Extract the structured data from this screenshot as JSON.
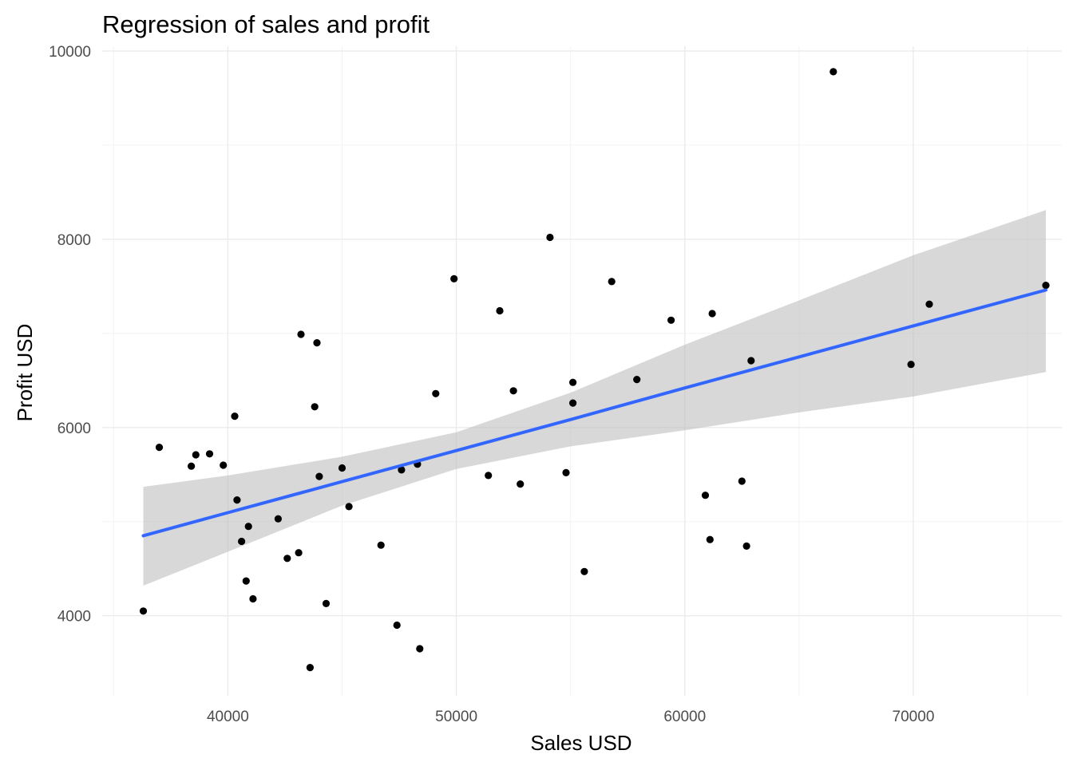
{
  "chart_data": {
    "type": "scatter",
    "title": "Regression of sales and profit",
    "xlabel": "Sales USD",
    "ylabel": "Profit USD",
    "xlim": [
      34500,
      76500
    ],
    "ylim": [
      3150,
      10050
    ],
    "x_ticks": [
      40000,
      50000,
      60000,
      70000
    ],
    "x_tick_labels": [
      "40000",
      "50000",
      "60000",
      "70000"
    ],
    "y_ticks": [
      4000,
      6000,
      8000,
      10000
    ],
    "y_tick_labels": [
      "4000",
      "6000",
      "8000",
      "10000"
    ],
    "grid": true,
    "point_color": "#000000",
    "line_color": "#3366ff",
    "band_color": "#bebebe",
    "regression": {
      "x": [
        36300,
        40000,
        45000,
        50000,
        55000,
        60000,
        65000,
        70000,
        75800
      ],
      "fit": [
        4850,
        5095,
        5425,
        5755,
        6085,
        6420,
        6750,
        7080,
        7460
      ],
      "lower": [
        4320,
        4680,
        5170,
        5560,
        5800,
        5970,
        6160,
        6330,
        6590
      ],
      "upper": [
        5370,
        5490,
        5690,
        5950,
        6370,
        6880,
        7350,
        7830,
        8310
      ]
    },
    "points": [
      {
        "x": 36300,
        "y": 4050
      },
      {
        "x": 37000,
        "y": 5790
      },
      {
        "x": 38400,
        "y": 5590
      },
      {
        "x": 38600,
        "y": 5710
      },
      {
        "x": 39200,
        "y": 5720
      },
      {
        "x": 39800,
        "y": 5600
      },
      {
        "x": 40300,
        "y": 6120
      },
      {
        "x": 40400,
        "y": 5230
      },
      {
        "x": 40600,
        "y": 4790
      },
      {
        "x": 40800,
        "y": 4370
      },
      {
        "x": 40900,
        "y": 4950
      },
      {
        "x": 41100,
        "y": 4180
      },
      {
        "x": 42200,
        "y": 5030
      },
      {
        "x": 42600,
        "y": 4610
      },
      {
        "x": 43100,
        "y": 4670
      },
      {
        "x": 43200,
        "y": 6990
      },
      {
        "x": 43600,
        "y": 3450
      },
      {
        "x": 43800,
        "y": 6220
      },
      {
        "x": 43900,
        "y": 6900
      },
      {
        "x": 44000,
        "y": 5480
      },
      {
        "x": 44300,
        "y": 4130
      },
      {
        "x": 45000,
        "y": 5570
      },
      {
        "x": 45300,
        "y": 5160
      },
      {
        "x": 46700,
        "y": 4750
      },
      {
        "x": 47400,
        "y": 3900
      },
      {
        "x": 47600,
        "y": 5550
      },
      {
        "x": 48300,
        "y": 5610
      },
      {
        "x": 48400,
        "y": 3650
      },
      {
        "x": 49100,
        "y": 6360
      },
      {
        "x": 49900,
        "y": 7580
      },
      {
        "x": 51400,
        "y": 5490
      },
      {
        "x": 51900,
        "y": 7240
      },
      {
        "x": 52500,
        "y": 6390
      },
      {
        "x": 52800,
        "y": 5400
      },
      {
        "x": 54100,
        "y": 8020
      },
      {
        "x": 54800,
        "y": 5520
      },
      {
        "x": 55100,
        "y": 6480
      },
      {
        "x": 55100,
        "y": 6260
      },
      {
        "x": 55600,
        "y": 4470
      },
      {
        "x": 56800,
        "y": 7550
      },
      {
        "x": 57900,
        "y": 6510
      },
      {
        "x": 59400,
        "y": 7140
      },
      {
        "x": 60900,
        "y": 5280
      },
      {
        "x": 61100,
        "y": 4810
      },
      {
        "x": 61200,
        "y": 7210
      },
      {
        "x": 62500,
        "y": 5430
      },
      {
        "x": 62700,
        "y": 4740
      },
      {
        "x": 62900,
        "y": 6710
      },
      {
        "x": 66500,
        "y": 9780
      },
      {
        "x": 69900,
        "y": 6670
      },
      {
        "x": 70700,
        "y": 7310
      },
      {
        "x": 75800,
        "y": 7510
      }
    ]
  }
}
